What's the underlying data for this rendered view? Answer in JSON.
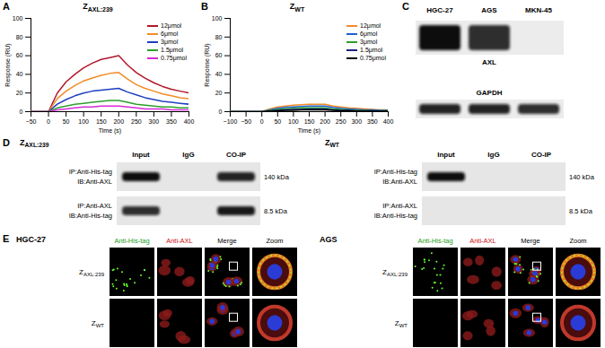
{
  "chart_data": [
    {
      "type": "line",
      "title": "ZAXL:239",
      "x_label": "Time (s)",
      "y_label": "Response (RU)",
      "x": [
        -50,
        -25,
        0,
        25,
        50,
        75,
        100,
        125,
        150,
        175,
        200,
        225,
        250,
        275,
        300,
        325,
        350,
        375,
        400
      ],
      "xlim": [
        -50,
        400
      ],
      "xticks": [
        -50,
        0,
        50,
        100,
        150,
        200,
        250,
        300,
        350,
        400
      ],
      "ylim": [
        0,
        100
      ],
      "yticks": [
        0,
        20,
        40,
        60,
        80,
        100
      ],
      "legend": "upper right",
      "series": [
        {
          "name": "12μmol",
          "color": "#b2182b",
          "values": [
            0,
            0,
            0,
            20,
            32,
            40,
            47,
            52,
            56,
            58,
            60,
            50,
            42,
            36,
            31,
            27,
            24,
            22,
            20
          ]
        },
        {
          "name": "6μmol",
          "color": "#f28c28",
          "values": [
            0,
            0,
            0,
            14,
            22,
            28,
            33,
            36,
            39,
            41,
            42,
            35,
            29,
            25,
            22,
            19,
            17,
            15,
            14
          ]
        },
        {
          "name": "3μmol",
          "color": "#1f3fbf",
          "values": [
            0,
            0,
            0,
            8,
            13,
            17,
            20,
            22,
            23,
            24,
            25,
            21,
            18,
            15,
            13,
            11,
            10,
            9,
            8
          ]
        },
        {
          "name": "1.5μmol",
          "color": "#2ca02c",
          "values": [
            0,
            0,
            0,
            4,
            6,
            8,
            9,
            10,
            11,
            12,
            12,
            10,
            8,
            7,
            6,
            5,
            5,
            4,
            4
          ]
        },
        {
          "name": "0.75μmol",
          "color": "#d62ad6",
          "values": [
            0,
            0,
            0,
            2,
            3,
            4,
            5,
            5,
            6,
            6,
            6,
            5,
            4,
            3,
            3,
            3,
            2,
            2,
            2
          ]
        }
      ]
    },
    {
      "type": "line",
      "title": "ZWT",
      "x_label": "Time (s)",
      "y_label": "Response (RU)",
      "x": [
        -100,
        -75,
        -50,
        -25,
        0,
        25,
        50,
        75,
        100,
        125,
        150,
        175,
        200,
        225,
        250,
        275,
        300,
        325,
        350,
        375,
        400
      ],
      "xlim": [
        -100,
        400
      ],
      "xticks": [
        -100,
        -50,
        0,
        50,
        100,
        150,
        200,
        250,
        300,
        350,
        400
      ],
      "ylim": [
        0,
        100
      ],
      "yticks": [
        0,
        20,
        40,
        60,
        80,
        100
      ],
      "legend": "upper right",
      "series": [
        {
          "name": "12μmol",
          "color": "#f28c28",
          "values": [
            0,
            0,
            0,
            0,
            0,
            3,
            5,
            6,
            7,
            7.5,
            8,
            8,
            8,
            6,
            5,
            4,
            3.5,
            3,
            2.5,
            2,
            2
          ]
        },
        {
          "name": "6μmol",
          "color": "#1f5fd0",
          "values": [
            0,
            0,
            0,
            0,
            0,
            2,
            3.5,
            4.5,
            5,
            5.5,
            6,
            6,
            6,
            4.5,
            3.5,
            3,
            2.5,
            2,
            2,
            1.5,
            1.5
          ]
        },
        {
          "name": "3μmol",
          "color": "#2ca02c",
          "values": [
            0,
            0,
            0,
            0,
            0,
            1.5,
            2.5,
            3,
            3.5,
            4,
            4,
            4,
            4,
            3,
            2.5,
            2,
            1.5,
            1.5,
            1,
            1,
            1
          ]
        },
        {
          "name": "1.5μmol",
          "color": "#1a237e",
          "values": [
            0,
            0,
            0,
            0,
            0,
            1,
            1.5,
            2,
            2.5,
            2.5,
            3,
            3,
            3,
            2,
            1.5,
            1.5,
            1,
            1,
            1,
            0.5,
            0.5
          ]
        },
        {
          "name": "0.75μmol",
          "color": "#000000",
          "values": [
            0,
            0,
            0,
            0,
            0,
            0.5,
            1,
            1.5,
            1.5,
            2,
            2,
            2,
            2,
            1.5,
            1,
            1,
            0.5,
            0.5,
            0.5,
            0.5,
            0.5
          ]
        }
      ]
    }
  ],
  "panel_labels": [
    "A",
    "B",
    "C",
    "D",
    "E"
  ],
  "western_blot": {
    "lanes": [
      "HGC-27",
      "AGS",
      "MKN-45"
    ],
    "rows": [
      {
        "label": "AXL",
        "band_intensity": [
          1,
          0.85,
          0
        ]
      },
      {
        "label": "GAPDH",
        "band_intensity": [
          0.9,
          0.9,
          0.85
        ]
      }
    ]
  },
  "co_ip": [
    {
      "title": "ZAXL:239",
      "lanes": [
        "Input",
        "IgG",
        "CO-IP"
      ],
      "rows": [
        {
          "label": [
            "IP:Anti-His-tag",
            "IB:Anti-AXL"
          ],
          "size": "140 kDa",
          "band_intensity": [
            1,
            0,
            0.9
          ]
        },
        {
          "label": [
            "IP:Anti-AXL",
            "IB:Anti-His-tag"
          ],
          "size": "8.5 kDa",
          "band_intensity": [
            0.85,
            0,
            0.95
          ]
        }
      ]
    },
    {
      "title": "ZWT",
      "lanes": [
        "Input",
        "IgG",
        "CO-IP"
      ],
      "rows": [
        {
          "label": [
            "IP:Anti-His-tag",
            "IB:Anti-AXL"
          ],
          "size": "140 kDa",
          "band_intensity": [
            1,
            0,
            0
          ]
        },
        {
          "label": [
            "IP:Anti-AXL",
            "IB:Anti-His-tag"
          ],
          "size": "8.5 kDa",
          "band_intensity": [
            0,
            0,
            0
          ]
        }
      ]
    }
  ],
  "immunofluorescence": {
    "cell_lines": [
      "HGC-27",
      "AGS"
    ],
    "channels": [
      "Anti-His-tag",
      "Anti-AXL",
      "Merge",
      "Zoom"
    ],
    "rows": [
      {
        "label": "ZAXL:239",
        "his_tag_signal": true
      },
      {
        "label": "ZWT",
        "his_tag_signal": false
      }
    ]
  }
}
